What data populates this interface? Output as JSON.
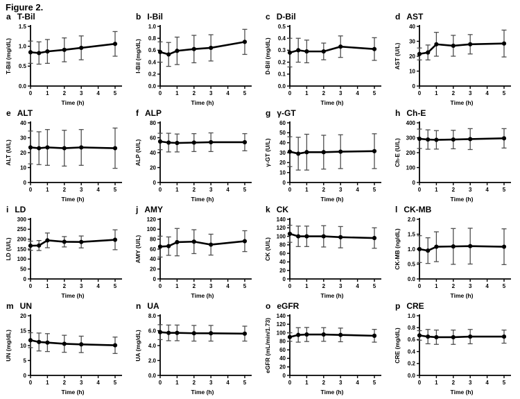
{
  "figure": {
    "title": "Figure 2."
  },
  "colors": {
    "line": "#000000",
    "marker": "#000000",
    "error_bar": "#4d4d4d",
    "axis": "#000000",
    "background": "#ffffff"
  },
  "chart_data": {
    "type": "line",
    "description": "4x4 grid of mean±SD time-course plots of blood test parameters",
    "x": [
      0,
      0.5,
      1,
      2,
      3,
      5
    ],
    "xticks": [
      0,
      1,
      2,
      3,
      4,
      5
    ],
    "xlim": [
      0,
      5
    ],
    "xlabel": "Time (h)",
    "legend": "none",
    "grid": false,
    "panels": [
      {
        "letter": "a",
        "title": "T-Bil",
        "ylabel": "T-Bil (mg/dL)",
        "ylim": [
          0,
          1.5
        ],
        "ytick_step": 0.5,
        "ydecimals": 1,
        "values": [
          0.85,
          0.83,
          0.87,
          0.91,
          0.96,
          1.06
        ],
        "errors": [
          0.28,
          0.28,
          0.3,
          0.3,
          0.3,
          0.31
        ]
      },
      {
        "letter": "b",
        "title": "I-Bil",
        "ylabel": "I-Bil (mg/dL)",
        "ylim": [
          0,
          1.0
        ],
        "ytick_step": 0.2,
        "ydecimals": 1,
        "values": [
          0.57,
          0.53,
          0.59,
          0.62,
          0.64,
          0.74
        ],
        "errors": [
          0.17,
          0.2,
          0.23,
          0.23,
          0.22,
          0.21
        ]
      },
      {
        "letter": "c",
        "title": "D-Bil",
        "ylabel": "D-Bil (mg/dL)",
        "ylim": [
          0,
          0.5
        ],
        "ytick_step": 0.1,
        "ydecimals": 1,
        "values": [
          0.28,
          0.3,
          0.29,
          0.29,
          0.33,
          0.31
        ],
        "errors": [
          0.12,
          0.1,
          0.095,
          0.07,
          0.09,
          0.095
        ]
      },
      {
        "letter": "d",
        "title": "AST",
        "ylabel": "AST (U/L)",
        "ylim": [
          0,
          40
        ],
        "ytick_step": 10,
        "ydecimals": 0,
        "values": [
          21.5,
          22.5,
          28,
          27,
          28,
          28.5
        ],
        "errors": [
          4,
          5,
          8,
          7,
          6.5,
          9
        ]
      },
      {
        "letter": "e",
        "title": "ALT",
        "ylabel": "ALT (U/L)",
        "ylim": [
          0,
          40
        ],
        "ytick_step": 10,
        "ydecimals": 0,
        "values": [
          23.5,
          23,
          23.5,
          23,
          23.5,
          23
        ],
        "errors": [
          11,
          11,
          12,
          12,
          12,
          13.5
        ]
      },
      {
        "letter": "f",
        "title": "ALP",
        "ylabel": "ALP (U/L)",
        "ylim": [
          0,
          80
        ],
        "ytick_step": 20,
        "ydecimals": 0,
        "values": [
          55,
          53.5,
          53,
          53.5,
          54,
          54
        ],
        "errors": [
          11,
          12.5,
          12,
          12,
          12.5,
          11.5
        ]
      },
      {
        "letter": "g",
        "title": "γ-GT",
        "ylabel": "γ-GT (U/L)",
        "ylim": [
          0,
          60
        ],
        "ytick_step": 10,
        "ydecimals": 0,
        "values": [
          31,
          29,
          30.5,
          30.5,
          31,
          31.5
        ],
        "errors": [
          15,
          16.5,
          18,
          17,
          17,
          17.5
        ]
      },
      {
        "letter": "h",
        "title": "Ch-E",
        "ylabel": "Ch-E (U/L)",
        "ylim": [
          0,
          400
        ],
        "ytick_step": 100,
        "ydecimals": 0,
        "values": [
          293,
          288,
          286,
          288,
          291,
          296
        ],
        "errors": [
          65,
          65,
          62,
          62,
          70,
          65
        ]
      },
      {
        "letter": "i",
        "title": "LD",
        "ylabel": "LD (U/L)",
        "ylim": [
          0,
          300
        ],
        "ytick_step": 50,
        "ydecimals": 0,
        "values": [
          167,
          168,
          194,
          187,
          186,
          197
        ],
        "errors": [
          23,
          25,
          37,
          26,
          30,
          50
        ]
      },
      {
        "letter": "j",
        "title": "AMY",
        "ylabel": "AMY (U/L)",
        "ylim": [
          0,
          120
        ],
        "ytick_step": 20,
        "ydecimals": 0,
        "values": [
          65,
          66,
          74,
          75,
          69,
          76
        ],
        "errors": [
          21,
          18.5,
          27.5,
          24,
          21,
          21
        ]
      },
      {
        "letter": "k",
        "title": "CK",
        "ylabel": "CK (U/L)",
        "ylim": [
          0,
          140
        ],
        "ytick_step": 20,
        "ydecimals": 0,
        "values": [
          106,
          100,
          100,
          100,
          98,
          96
        ],
        "errors": [
          20,
          24,
          24,
          25,
          25,
          24
        ]
      },
      {
        "letter": "l",
        "title": "CK-MB",
        "ylabel": "CK-MB (ng/dL)",
        "ylim": [
          0,
          2.0
        ],
        "ytick_step": 0.5,
        "ydecimals": 1,
        "values": [
          1.0,
          0.95,
          1.08,
          1.09,
          1.1,
          1.08
        ],
        "errors": [
          0.45,
          0.43,
          0.5,
          0.6,
          0.6,
          0.6
        ]
      },
      {
        "letter": "m",
        "title": "UN",
        "ylabel": "UN (mg/dL)",
        "ylim": [
          0,
          20
        ],
        "ytick_step": 5,
        "ydecimals": 0,
        "values": [
          11.8,
          11.2,
          11.0,
          10.6,
          10.4,
          10.1
        ],
        "errors": [
          2.5,
          3,
          3,
          2.85,
          2.75,
          2.75
        ]
      },
      {
        "letter": "n",
        "title": "UA",
        "ylabel": "UA (mg/dL)",
        "ylim": [
          0,
          8.0
        ],
        "ytick_step": 2.0,
        "ydecimals": 1,
        "values": [
          5.8,
          5.7,
          5.7,
          5.65,
          5.65,
          5.6
        ],
        "errors": [
          1.0,
          1.05,
          1.05,
          1.05,
          1.05,
          1.0
        ]
      },
      {
        "letter": "o",
        "title": "eGFR",
        "ylabel": "eGFR (mL/min/1.73)",
        "ylim": [
          0,
          140
        ],
        "ytick_step": 20,
        "ydecimals": 0,
        "values": [
          90,
          95,
          96,
          96,
          95,
          93
        ],
        "errors": [
          10,
          17,
          16.5,
          16,
          16,
          15
        ]
      },
      {
        "letter": "p",
        "title": "CRE",
        "ylabel": "CRE (mg/dL)",
        "ylim": [
          0,
          1.0
        ],
        "ytick_step": 0.2,
        "ydecimals": 1,
        "values": [
          0.67,
          0.65,
          0.64,
          0.64,
          0.65,
          0.65
        ],
        "errors": [
          0.08,
          0.12,
          0.12,
          0.12,
          0.12,
          0.11
        ]
      }
    ]
  }
}
